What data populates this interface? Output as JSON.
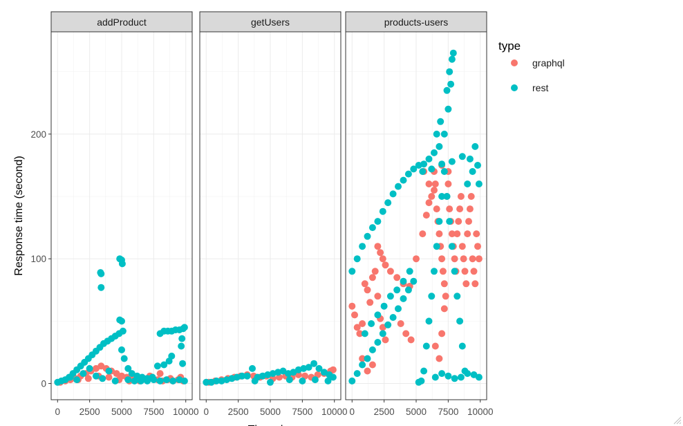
{
  "chart_data": {
    "type": "scatter",
    "ylabel": "Response time (second)",
    "xlabel": "Threads",
    "panels": [
      "addProduct",
      "getUsers",
      "products-users"
    ],
    "legend": {
      "title": "type",
      "position": "right",
      "entries": [
        {
          "name": "graphql",
          "color": "#F8766D"
        },
        {
          "name": "rest",
          "color": "#00BFC4"
        }
      ]
    },
    "xlim": [
      -500,
      10500
    ],
    "ylim": [
      -13,
      282
    ],
    "x_ticks": [
      0,
      2500,
      5000,
      7500,
      10000
    ],
    "x_tick_labels": [
      "0",
      "2500",
      "5000",
      "7500",
      "10000"
    ],
    "y_ticks": [
      0,
      100,
      200
    ],
    "y_tick_labels": [
      "0",
      "100",
      "200"
    ],
    "grid": true,
    "series": [
      {
        "name": "graphql",
        "panel": "addProduct",
        "points": [
          [
            200,
            1
          ],
          [
            600,
            2
          ],
          [
            1000,
            3
          ],
          [
            1400,
            4
          ],
          [
            1800,
            6
          ],
          [
            2200,
            8
          ],
          [
            2600,
            10
          ],
          [
            3000,
            12
          ],
          [
            3400,
            14
          ],
          [
            3800,
            12
          ],
          [
            4200,
            10
          ],
          [
            4600,
            8
          ],
          [
            5000,
            6
          ],
          [
            5400,
            5
          ],
          [
            5800,
            4
          ],
          [
            6200,
            3
          ],
          [
            6600,
            3
          ],
          [
            7000,
            4
          ],
          [
            7400,
            5
          ],
          [
            7800,
            3
          ],
          [
            8200,
            2
          ],
          [
            8600,
            3
          ],
          [
            9000,
            2
          ],
          [
            9400,
            3
          ],
          [
            9800,
            2
          ],
          [
            1600,
            3
          ],
          [
            2400,
            4
          ],
          [
            3200,
            6
          ],
          [
            4000,
            5
          ],
          [
            4800,
            3
          ],
          [
            5600,
            2
          ],
          [
            6400,
            2
          ],
          [
            7200,
            6
          ],
          [
            8000,
            8
          ],
          [
            8800,
            4
          ],
          [
            9600,
            5
          ]
        ]
      },
      {
        "name": "rest",
        "panel": "addProduct",
        "points": [
          [
            0,
            1
          ],
          [
            300,
            2
          ],
          [
            600,
            3
          ],
          [
            900,
            5
          ],
          [
            1200,
            8
          ],
          [
            1500,
            11
          ],
          [
            1800,
            14
          ],
          [
            2100,
            17
          ],
          [
            2400,
            20
          ],
          [
            2700,
            23
          ],
          [
            3000,
            26
          ],
          [
            3300,
            29
          ],
          [
            3600,
            32
          ],
          [
            3900,
            34
          ],
          [
            4200,
            36
          ],
          [
            4500,
            38
          ],
          [
            4800,
            40
          ],
          [
            5100,
            42
          ],
          [
            3400,
            88
          ],
          [
            3350,
            89
          ],
          [
            3400,
            77
          ],
          [
            4850,
            100
          ],
          [
            5000,
            99
          ],
          [
            5050,
            96
          ],
          [
            4850,
            51
          ],
          [
            5000,
            50
          ],
          [
            5000,
            27
          ],
          [
            5200,
            20
          ],
          [
            5500,
            12
          ],
          [
            5800,
            8
          ],
          [
            6200,
            6
          ],
          [
            6600,
            5
          ],
          [
            7000,
            4
          ],
          [
            7400,
            5
          ],
          [
            7800,
            14
          ],
          [
            8000,
            40
          ],
          [
            8300,
            42
          ],
          [
            8600,
            42
          ],
          [
            8900,
            42
          ],
          [
            9200,
            43
          ],
          [
            9500,
            43
          ],
          [
            9800,
            44
          ],
          [
            9900,
            45
          ],
          [
            9650,
            30
          ],
          [
            9700,
            36
          ],
          [
            9750,
            16
          ],
          [
            8300,
            15
          ],
          [
            8700,
            18
          ],
          [
            8900,
            22
          ],
          [
            1000,
            5
          ],
          [
            1500,
            3
          ],
          [
            2000,
            8
          ],
          [
            2500,
            12
          ],
          [
            3000,
            6
          ],
          [
            3500,
            4
          ],
          [
            4000,
            10
          ],
          [
            4500,
            2
          ],
          [
            5500,
            3
          ],
          [
            6000,
            2
          ],
          [
            6500,
            2
          ],
          [
            7000,
            2
          ],
          [
            7500,
            3
          ],
          [
            8000,
            2
          ],
          [
            8500,
            3
          ],
          [
            9000,
            2
          ],
          [
            9500,
            3
          ],
          [
            9900,
            2
          ]
        ]
      },
      {
        "name": "graphql",
        "panel": "getUsers",
        "points": [
          [
            200,
            1
          ],
          [
            700,
            2
          ],
          [
            1200,
            3
          ],
          [
            1700,
            4
          ],
          [
            2200,
            5
          ],
          [
            2700,
            6
          ],
          [
            3200,
            7
          ],
          [
            3700,
            6
          ],
          [
            4200,
            5
          ],
          [
            4700,
            6
          ],
          [
            5200,
            4
          ],
          [
            5700,
            5
          ],
          [
            6200,
            6
          ],
          [
            6700,
            5
          ],
          [
            7200,
            7
          ],
          [
            7700,
            6
          ],
          [
            8200,
            5
          ],
          [
            8700,
            7
          ],
          [
            9200,
            8
          ],
          [
            9700,
            10
          ],
          [
            9900,
            11
          ]
        ]
      },
      {
        "name": "rest",
        "panel": "getUsers",
        "points": [
          [
            0,
            1
          ],
          [
            400,
            1
          ],
          [
            800,
            2
          ],
          [
            1200,
            2
          ],
          [
            1600,
            3
          ],
          [
            2000,
            4
          ],
          [
            2400,
            5
          ],
          [
            2800,
            6
          ],
          [
            3200,
            6
          ],
          [
            3600,
            12
          ],
          [
            4000,
            5
          ],
          [
            4400,
            6
          ],
          [
            4800,
            7
          ],
          [
            5200,
            8
          ],
          [
            5600,
            9
          ],
          [
            6000,
            10
          ],
          [
            6400,
            8
          ],
          [
            6800,
            9
          ],
          [
            7200,
            11
          ],
          [
            7600,
            12
          ],
          [
            8000,
            13
          ],
          [
            8400,
            16
          ],
          [
            8800,
            12
          ],
          [
            9200,
            9
          ],
          [
            9600,
            7
          ],
          [
            9900,
            5
          ],
          [
            3800,
            2
          ],
          [
            5000,
            1
          ],
          [
            6500,
            3
          ],
          [
            7500,
            2
          ],
          [
            8500,
            3
          ],
          [
            9500,
            2
          ]
        ]
      },
      {
        "name": "graphql",
        "panel": "products-users",
        "points": [
          [
            0,
            62
          ],
          [
            200,
            55
          ],
          [
            400,
            45
          ],
          [
            600,
            40
          ],
          [
            800,
            48
          ],
          [
            1000,
            80
          ],
          [
            1200,
            75
          ],
          [
            1400,
            65
          ],
          [
            1600,
            85
          ],
          [
            1800,
            90
          ],
          [
            2000,
            70
          ],
          [
            2200,
            52
          ],
          [
            2400,
            45
          ],
          [
            2600,
            35
          ],
          [
            2000,
            110
          ],
          [
            2200,
            105
          ],
          [
            2400,
            100
          ],
          [
            2600,
            95
          ],
          [
            3000,
            90
          ],
          [
            3500,
            85
          ],
          [
            4000,
            80
          ],
          [
            4500,
            78
          ],
          [
            5000,
            100
          ],
          [
            5500,
            120
          ],
          [
            5800,
            135
          ],
          [
            6000,
            145
          ],
          [
            6200,
            150
          ],
          [
            6400,
            155
          ],
          [
            6500,
            160
          ],
          [
            6600,
            140
          ],
          [
            6700,
            130
          ],
          [
            6800,
            120
          ],
          [
            6900,
            110
          ],
          [
            7000,
            100
          ],
          [
            7100,
            90
          ],
          [
            7200,
            80
          ],
          [
            7300,
            70
          ],
          [
            7400,
            150
          ],
          [
            7500,
            160
          ],
          [
            7600,
            140
          ],
          [
            7700,
            130
          ],
          [
            7800,
            120
          ],
          [
            7900,
            110
          ],
          [
            8000,
            100
          ],
          [
            8100,
            90
          ],
          [
            8200,
            120
          ],
          [
            8300,
            130
          ],
          [
            8400,
            140
          ],
          [
            8500,
            150
          ],
          [
            8600,
            110
          ],
          [
            8700,
            100
          ],
          [
            8800,
            90
          ],
          [
            8900,
            80
          ],
          [
            9000,
            120
          ],
          [
            9100,
            130
          ],
          [
            9200,
            140
          ],
          [
            9300,
            150
          ],
          [
            9400,
            100
          ],
          [
            9500,
            90
          ],
          [
            9600,
            80
          ],
          [
            9700,
            120
          ],
          [
            9800,
            110
          ],
          [
            9900,
            100
          ],
          [
            6500,
            30
          ],
          [
            6800,
            20
          ],
          [
            7000,
            40
          ],
          [
            7200,
            60
          ],
          [
            5600,
            170
          ],
          [
            6000,
            160
          ],
          [
            6400,
            170
          ],
          [
            7000,
            175
          ],
          [
            7500,
            170
          ],
          [
            3800,
            48
          ],
          [
            4200,
            40
          ],
          [
            4600,
            35
          ],
          [
            800,
            20
          ],
          [
            1200,
            10
          ],
          [
            1600,
            15
          ]
        ]
      },
      {
        "name": "rest",
        "panel": "products-users",
        "points": [
          [
            0,
            90
          ],
          [
            400,
            100
          ],
          [
            800,
            110
          ],
          [
            1200,
            118
          ],
          [
            1600,
            125
          ],
          [
            2000,
            130
          ],
          [
            2400,
            138
          ],
          [
            2800,
            145
          ],
          [
            3200,
            152
          ],
          [
            3600,
            158
          ],
          [
            4000,
            163
          ],
          [
            4400,
            168
          ],
          [
            4800,
            172
          ],
          [
            5200,
            175
          ],
          [
            5600,
            176
          ],
          [
            6000,
            180
          ],
          [
            6400,
            185
          ],
          [
            6800,
            190
          ],
          [
            7200,
            200
          ],
          [
            7500,
            220
          ],
          [
            7700,
            240
          ],
          [
            7800,
            260
          ],
          [
            7900,
            265
          ],
          [
            7600,
            250
          ],
          [
            7400,
            235
          ],
          [
            6600,
            200
          ],
          [
            6900,
            210
          ],
          [
            0,
            2
          ],
          [
            400,
            8
          ],
          [
            800,
            15
          ],
          [
            1200,
            20
          ],
          [
            1600,
            27
          ],
          [
            2000,
            33
          ],
          [
            2400,
            40
          ],
          [
            2800,
            47
          ],
          [
            3200,
            53
          ],
          [
            3600,
            60
          ],
          [
            4000,
            68
          ],
          [
            4400,
            75
          ],
          [
            4800,
            82
          ],
          [
            5200,
            1
          ],
          [
            5400,
            2
          ],
          [
            5600,
            10
          ],
          [
            5800,
            30
          ],
          [
            6000,
            50
          ],
          [
            6200,
            70
          ],
          [
            6400,
            90
          ],
          [
            6600,
            110
          ],
          [
            6800,
            130
          ],
          [
            7000,
            150
          ],
          [
            7200,
            170
          ],
          [
            7400,
            150
          ],
          [
            7600,
            130
          ],
          [
            7800,
            110
          ],
          [
            8000,
            90
          ],
          [
            8200,
            70
          ],
          [
            8400,
            50
          ],
          [
            8600,
            30
          ],
          [
            8800,
            10
          ],
          [
            9000,
            160
          ],
          [
            9200,
            180
          ],
          [
            9400,
            170
          ],
          [
            9600,
            190
          ],
          [
            9800,
            175
          ],
          [
            9900,
            160
          ],
          [
            6500,
            5
          ],
          [
            7000,
            8
          ],
          [
            7500,
            6
          ],
          [
            8000,
            4
          ],
          [
            8500,
            5
          ],
          [
            9000,
            8
          ],
          [
            9500,
            7
          ],
          [
            9900,
            5
          ],
          [
            1500,
            48
          ],
          [
            2000,
            55
          ],
          [
            2500,
            62
          ],
          [
            3000,
            70
          ],
          [
            3500,
            75
          ],
          [
            4000,
            82
          ],
          [
            4500,
            90
          ],
          [
            1000,
            40
          ],
          [
            5500,
            170
          ],
          [
            6200,
            172
          ],
          [
            7000,
            176
          ],
          [
            7800,
            178
          ],
          [
            8600,
            182
          ]
        ]
      }
    ]
  }
}
